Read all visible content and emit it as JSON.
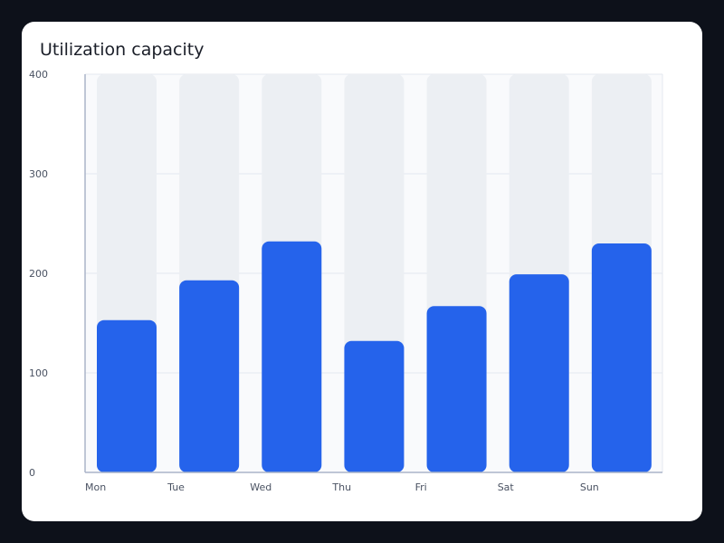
{
  "chart_data": {
    "type": "bar",
    "title": "Utilization capacity",
    "xlabel": "",
    "ylabel": "",
    "categories": [
      "Mon",
      "Tue",
      "Wed",
      "Thu",
      "Fri",
      "Sat",
      "Sun"
    ],
    "values": [
      153,
      193,
      232,
      132,
      167,
      199,
      230
    ],
    "capacity": 400,
    "ylim": [
      0,
      400
    ],
    "yticks": [
      0,
      100,
      200,
      300,
      400
    ],
    "ytick_labels": [
      "0",
      "100",
      "200",
      "300",
      "400"
    ],
    "grid": true,
    "legend": "none",
    "colors": {
      "bar": "#2563eb",
      "track": "#eceff3",
      "plot_bg": "#f9fafc",
      "grid": "#e4e8ef",
      "axis": "#aab4c8"
    }
  }
}
